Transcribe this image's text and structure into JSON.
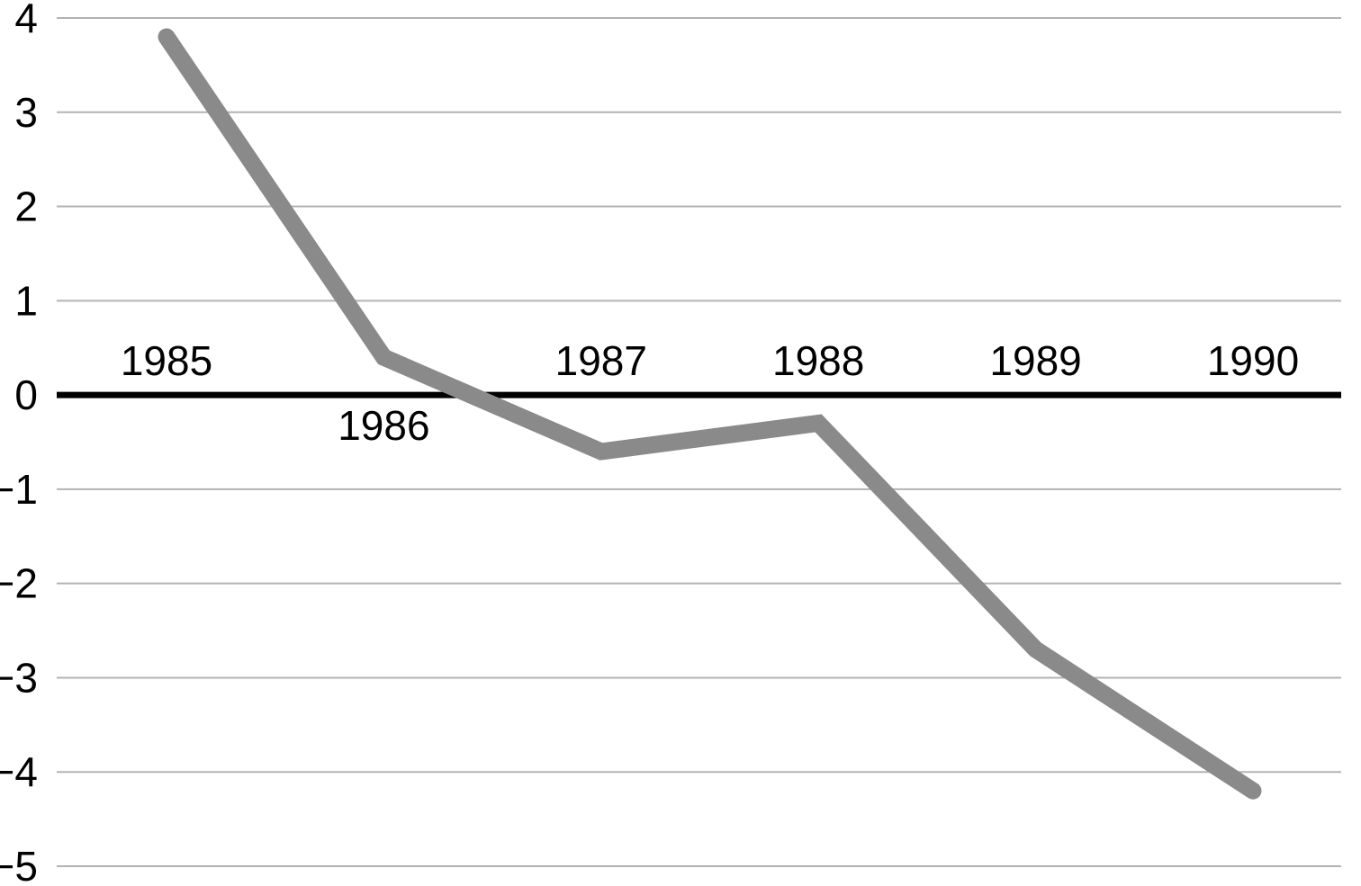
{
  "chart_data": {
    "type": "line",
    "title": "",
    "xlabel": "",
    "ylabel": "",
    "categories": [
      "1985",
      "1986",
      "1987",
      "1988",
      "1989",
      "1990"
    ],
    "values": [
      3.8,
      0.4,
      -0.6,
      -0.3,
      -2.7,
      -4.2
    ],
    "ylim": [
      -5,
      4
    ],
    "ytick_step": 1,
    "ytick_labels": [
      "4",
      "3",
      "2",
      "1",
      "0",
      "−1",
      "−2",
      "−3",
      "−4",
      "−5"
    ],
    "grid": true,
    "legend": "none",
    "zero_axis_emphasized": true,
    "category_label_position": [
      "above",
      "below",
      "above",
      "above",
      "above",
      "above"
    ],
    "colors": {
      "line": "#8a8a8a",
      "gridline": "#b3b3b3",
      "zero_axis": "#000000",
      "text": "#000000",
      "background": "#ffffff"
    }
  }
}
